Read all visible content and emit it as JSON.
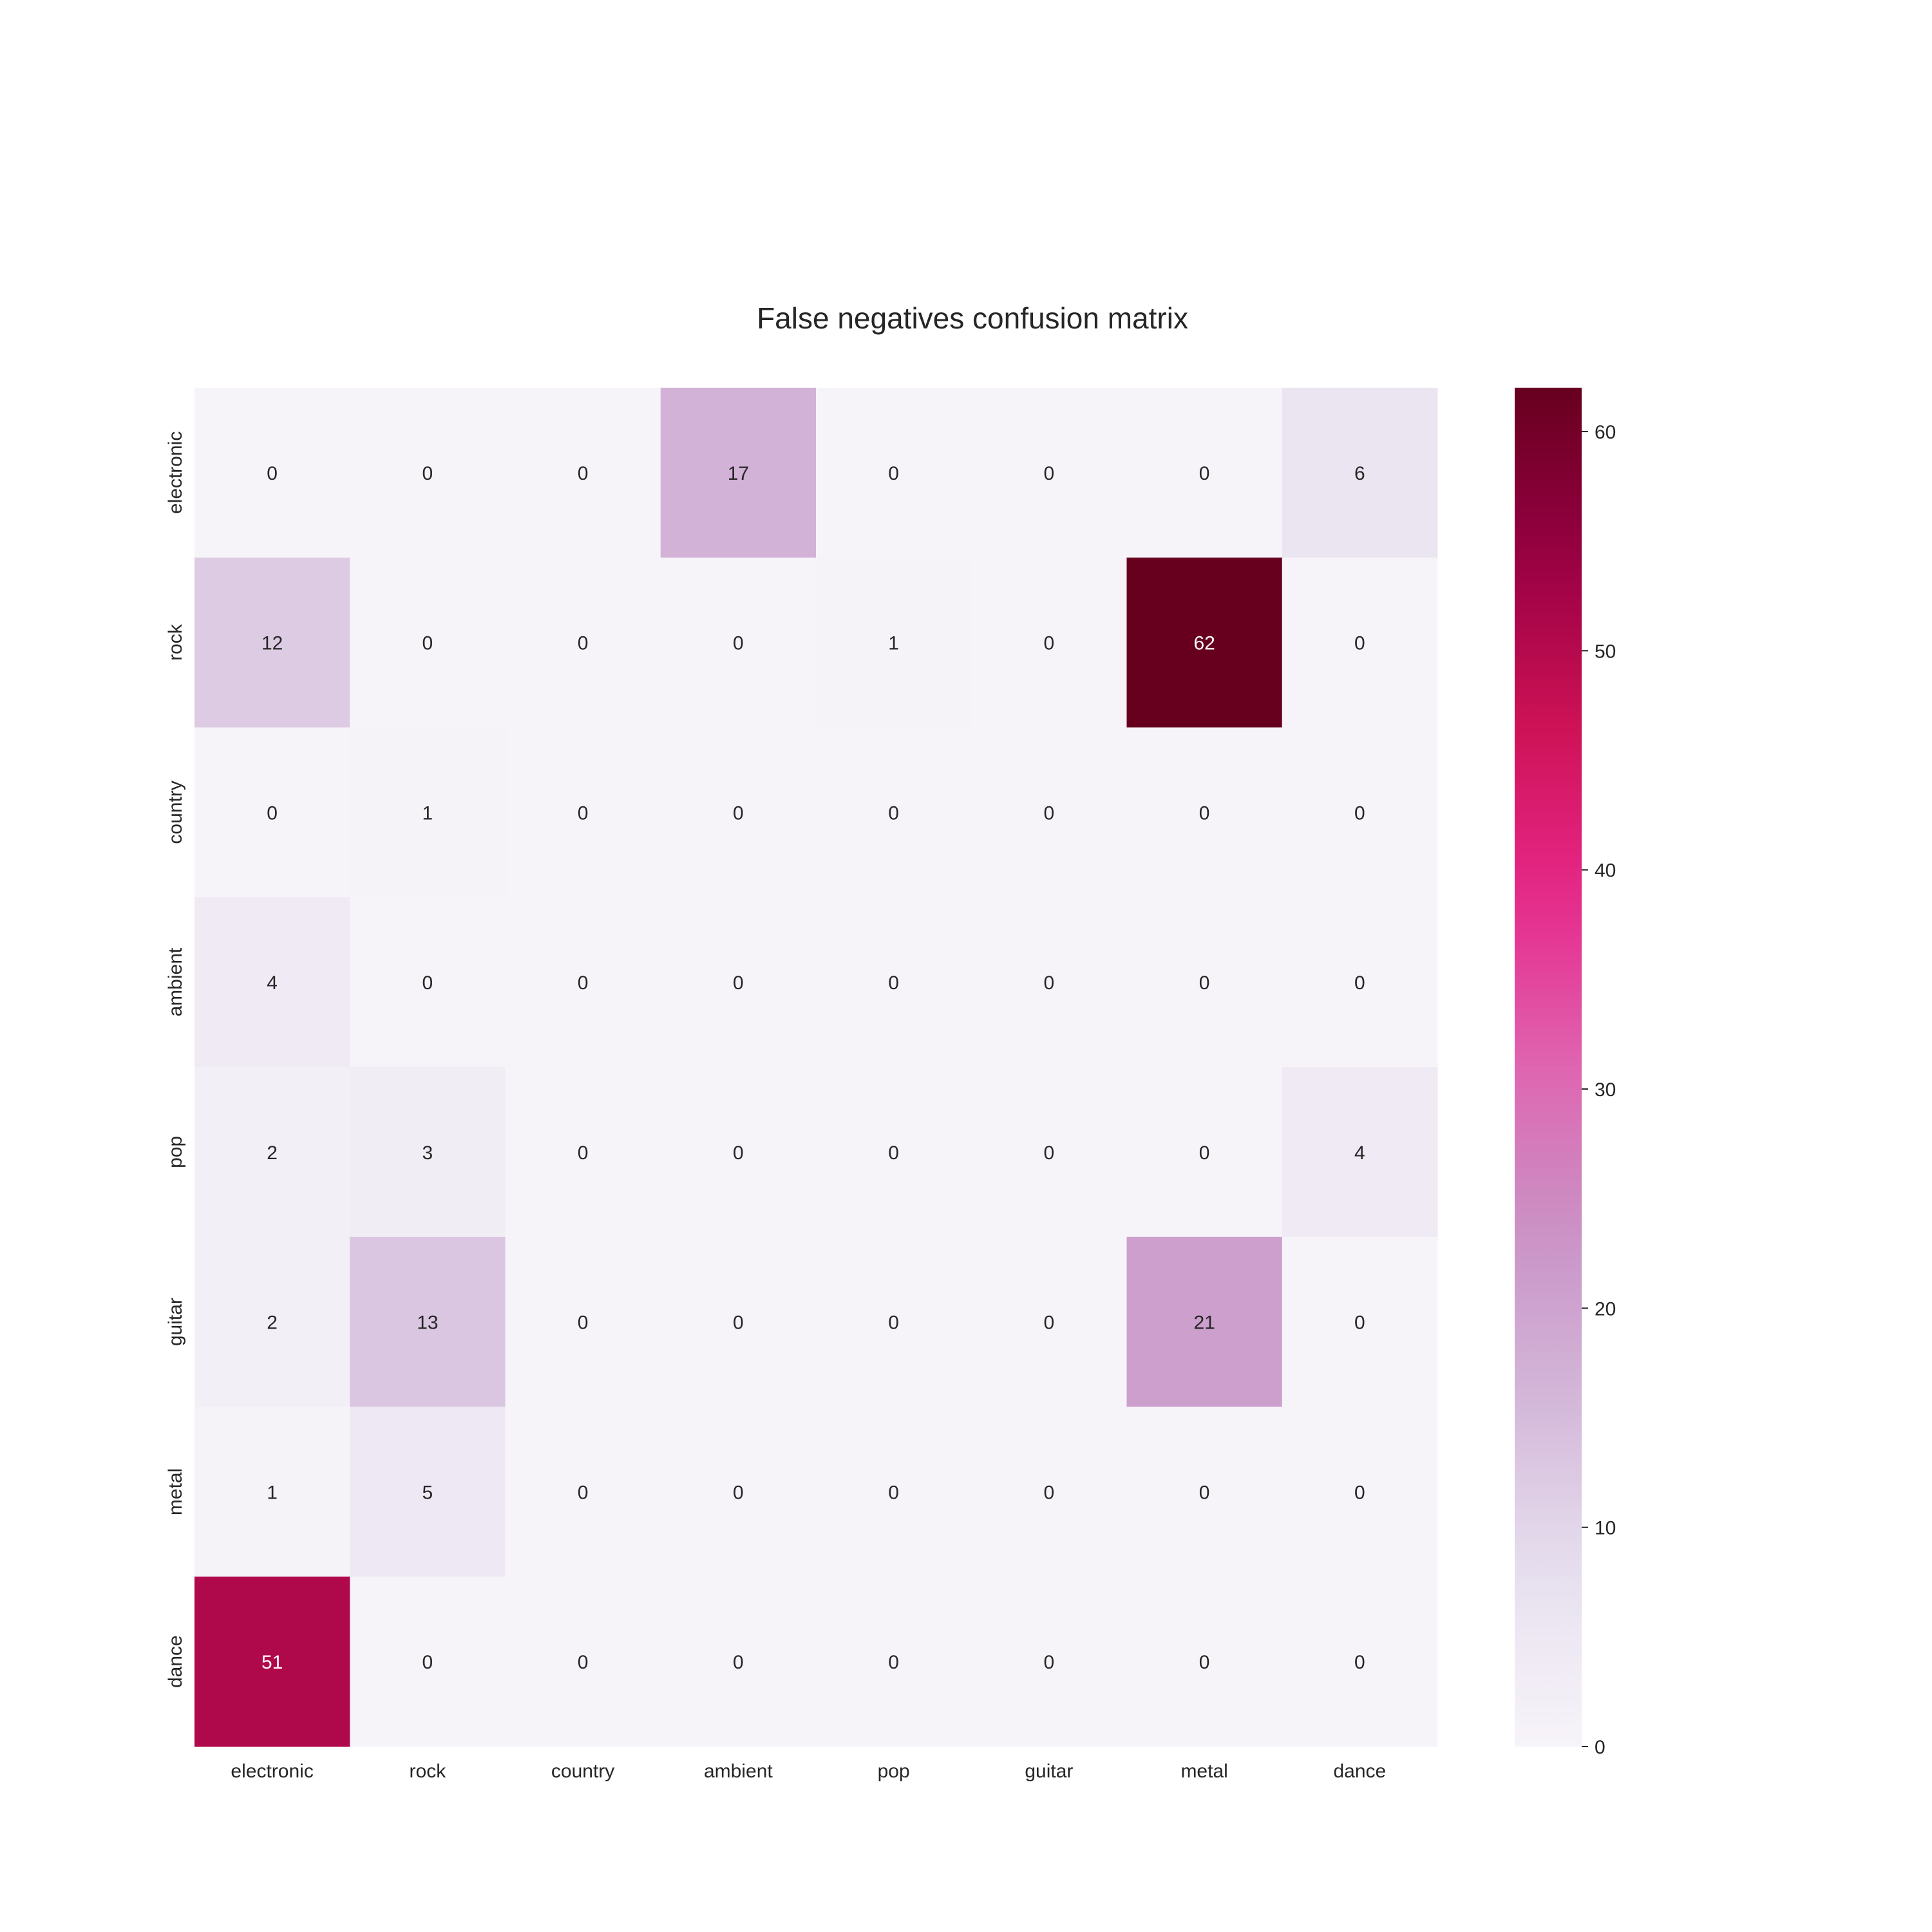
{
  "chart_data": {
    "type": "heatmap",
    "title": "False negatives confusion matrix",
    "xlabel": "",
    "ylabel": "",
    "x_categories": [
      "electronic",
      "rock",
      "country",
      "ambient",
      "pop",
      "guitar",
      "metal",
      "dance"
    ],
    "y_categories": [
      "electronic",
      "rock",
      "country",
      "ambient",
      "pop",
      "guitar",
      "metal",
      "dance"
    ],
    "values": [
      [
        0,
        0,
        0,
        17,
        0,
        0,
        0,
        6
      ],
      [
        12,
        0,
        0,
        0,
        1,
        0,
        62,
        0
      ],
      [
        0,
        1,
        0,
        0,
        0,
        0,
        0,
        0
      ],
      [
        4,
        0,
        0,
        0,
        0,
        0,
        0,
        0
      ],
      [
        2,
        3,
        0,
        0,
        0,
        0,
        0,
        4
      ],
      [
        2,
        13,
        0,
        0,
        0,
        0,
        21,
        0
      ],
      [
        1,
        5,
        0,
        0,
        0,
        0,
        0,
        0
      ],
      [
        51,
        0,
        0,
        0,
        0,
        0,
        0,
        0
      ]
    ],
    "colorbar": {
      "min": 0,
      "max": 62,
      "ticks": [
        0,
        10,
        20,
        30,
        40,
        50,
        60
      ],
      "colormap": "PuRd"
    },
    "annotated": true,
    "grid": false,
    "colors": {
      "annotation_dark": "#262626",
      "annotation_light": "#ffffff"
    }
  }
}
